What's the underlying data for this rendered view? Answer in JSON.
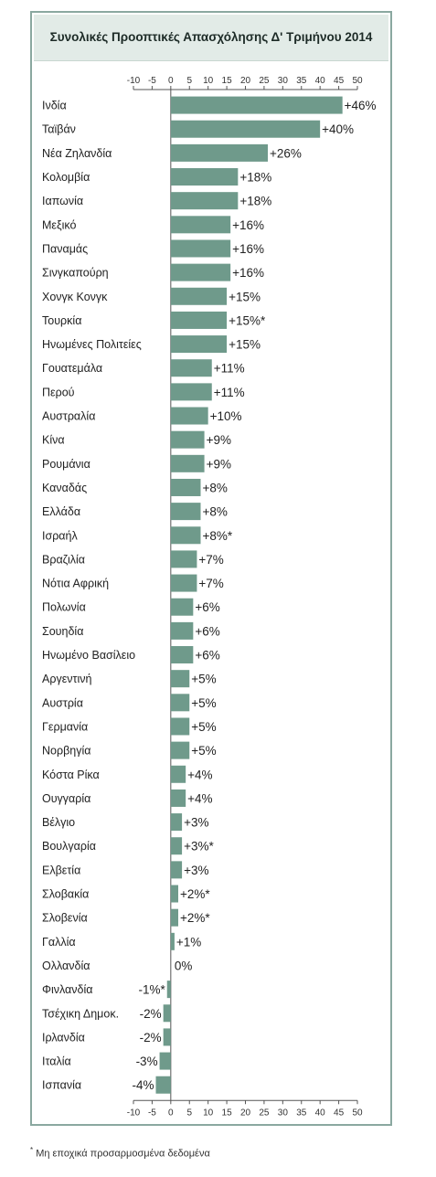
{
  "footnote": {
    "marker": "*",
    "text": "Μη εποχικά προσαρμοσμένα δεδομένα"
  },
  "chart_data": {
    "type": "bar",
    "orientation": "horizontal",
    "title": "Συνολικές Προοπτικές Απασχόλησης Δ' Τριμήνου 2014",
    "xlim": [
      -10,
      50
    ],
    "ticks": [
      -10,
      -5,
      0,
      5,
      10,
      15,
      20,
      25,
      30,
      35,
      40,
      45,
      50
    ],
    "tick_labels_position": "top and bottom",
    "bar_color": "#6f9a8b",
    "categories": [
      "Ινδία",
      "Ταϊβάν",
      "Νέα Ζηλανδία",
      "Κολομβία",
      "Ιαπωνία",
      "Μεξικό",
      "Παναμάς",
      "Σινγκαπούρη",
      "Χονγκ Κονγκ",
      "Τουρκία",
      "Ηνωμένες Πολιτείες",
      "Γουατεμάλα",
      "Περού",
      "Αυστραλία",
      "Κίνα",
      "Ρουμάνια",
      "Καναδάς",
      "Ελλάδα",
      "Ισραήλ",
      "Βραζιλία",
      "Νότια Αφρική",
      "Πολωνία",
      "Σουηδία",
      "Ηνωμένο Βασίλειο",
      "Αργεντινή",
      "Αυστρία",
      "Γερμανία",
      "Νορβηγία",
      "Κόστα Ρίκα",
      "Ουγγαρία",
      "Βέλγιο",
      "Βουλγαρία",
      "Ελβετία",
      "Σλοβακία",
      "Σλοβενία",
      "Γαλλία",
      "Ολλανδία",
      "Φινλανδία",
      "Τσέχικη Δημοκ.",
      "Ιρλανδία",
      "Ιταλία",
      "Ισπανία"
    ],
    "values": [
      46,
      40,
      26,
      18,
      18,
      16,
      16,
      16,
      15,
      15,
      15,
      11,
      11,
      10,
      9,
      9,
      8,
      8,
      8,
      7,
      7,
      6,
      6,
      6,
      5,
      5,
      5,
      5,
      4,
      4,
      3,
      3,
      3,
      2,
      2,
      1,
      0,
      -1,
      -2,
      -2,
      -3,
      -4
    ],
    "data_labels": [
      "+46%",
      "+40%",
      "+26%",
      "+18%",
      "+18%",
      "+16%",
      "+16%",
      "+16%",
      "+15%",
      "+15%*",
      "+15%",
      "+11%",
      "+11%",
      "+10%",
      "+9%",
      "+9%",
      "+8%",
      "+8%",
      "+8%*",
      "+7%",
      "+7%",
      "+6%",
      "+6%",
      "+6%",
      "+5%",
      "+5%",
      "+5%",
      "+5%",
      "+4%",
      "+4%",
      "+3%",
      "+3%*",
      "+3%",
      "+2%*",
      "+2%*",
      "+1%",
      "0%",
      "-1%*",
      "-2%",
      "-2%",
      "-3%",
      "-4%"
    ]
  }
}
